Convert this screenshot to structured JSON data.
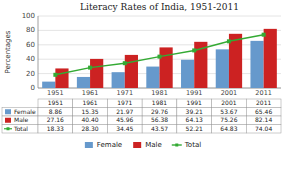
{
  "chart_data": {
    "type": "bar",
    "title": "Literacy Rates of India, 1951-2011",
    "categories": [
      "1951",
      "1961",
      "1971",
      "1981",
      "1991",
      "2001",
      "2011"
    ],
    "series": [
      {
        "name": "Female",
        "type": "bar",
        "color": "#6699CC",
        "values": [
          8.86,
          15.35,
          21.97,
          29.76,
          39.21,
          53.67,
          65.46
        ],
        "value_labels": [
          "8.86",
          "15.35",
          "21.97",
          "29.76",
          "39.21",
          "53.67",
          "65.46"
        ]
      },
      {
        "name": "Male",
        "type": "bar",
        "color": "#CC2222",
        "values": [
          27.16,
          40.4,
          45.96,
          56.38,
          64.13,
          75.26,
          82.14
        ],
        "value_labels": [
          "27.16",
          "40.40",
          "45.96",
          "56.38",
          "64.13",
          "75.26",
          "82.14"
        ]
      },
      {
        "name": "Total",
        "type": "line",
        "color": "#33AA33",
        "marker": "square",
        "values": [
          18.33,
          28.3,
          34.45,
          43.57,
          52.21,
          64.83,
          74.04
        ],
        "value_labels": [
          "18.33",
          "28.30",
          "34.45",
          "43.57",
          "52.21",
          "64.83",
          "74.04"
        ]
      }
    ],
    "y_label": "Percentages",
    "ylim": [
      0,
      100
    ],
    "yticks": [
      0,
      20,
      40,
      60,
      80,
      100
    ],
    "grid": true,
    "legend": "bottom"
  }
}
